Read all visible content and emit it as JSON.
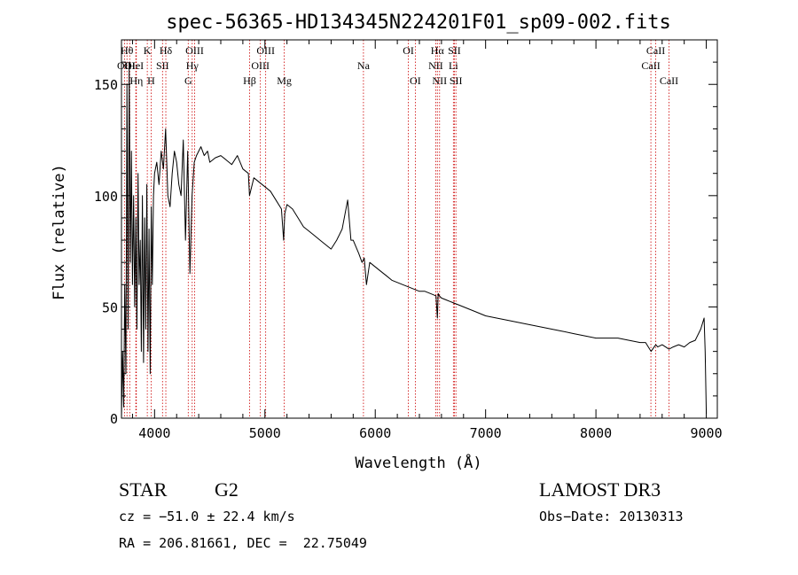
{
  "chart_data": {
    "type": "line",
    "title": "spec-56365-HD134345N224201F01_sp09-002.fits",
    "xlabel": "Wavelength (Å)",
    "ylabel": "Flux (relative)",
    "xlim": [
      3700,
      9100
    ],
    "ylim": [
      0,
      170
    ],
    "xticks": [
      4000,
      5000,
      6000,
      7000,
      8000,
      9000
    ],
    "yticks": [
      0,
      50,
      100,
      150
    ],
    "grid": false,
    "series": [
      {
        "name": "spectrum",
        "x": [
          3700,
          3710,
          3720,
          3730,
          3740,
          3750,
          3760,
          3770,
          3780,
          3790,
          3800,
          3810,
          3820,
          3830,
          3840,
          3850,
          3860,
          3870,
          3880,
          3890,
          3900,
          3910,
          3920,
          3930,
          3940,
          3950,
          3960,
          3970,
          3980,
          3990,
          4000,
          4020,
          4040,
          4060,
          4080,
          4100,
          4120,
          4140,
          4160,
          4180,
          4200,
          4220,
          4240,
          4260,
          4280,
          4300,
          4320,
          4340,
          4360,
          4380,
          4400,
          4420,
          4450,
          4480,
          4500,
          4550,
          4600,
          4650,
          4700,
          4750,
          4800,
          4850,
          4860,
          4900,
          4950,
          5000,
          5050,
          5100,
          5150,
          5170,
          5180,
          5200,
          5250,
          5300,
          5350,
          5400,
          5450,
          5500,
          5550,
          5600,
          5650,
          5700,
          5750,
          5780,
          5800,
          5850,
          5880,
          5900,
          5920,
          5950,
          6000,
          6050,
          6100,
          6150,
          6200,
          6250,
          6300,
          6350,
          6400,
          6450,
          6500,
          6550,
          6563,
          6570,
          6580,
          6600,
          6650,
          6700,
          6750,
          6800,
          6900,
          7000,
          7100,
          7200,
          7300,
          7400,
          7500,
          7600,
          7700,
          7800,
          7900,
          8000,
          8100,
          8200,
          8300,
          8400,
          8450,
          8500,
          8542,
          8560,
          8600,
          8662,
          8700,
          8750,
          8800,
          8850,
          8900,
          8950,
          8980,
          8990,
          9000
        ],
        "y": [
          0,
          30,
          5,
          60,
          20,
          150,
          40,
          160,
          70,
          120,
          60,
          100,
          50,
          90,
          40,
          110,
          60,
          80,
          30,
          100,
          25,
          90,
          40,
          105,
          30,
          85,
          20,
          95,
          60,
          100,
          110,
          115,
          105,
          120,
          112,
          130,
          100,
          95,
          110,
          120,
          115,
          105,
          100,
          125,
          80,
          120,
          65,
          100,
          115,
          118,
          120,
          122,
          118,
          120,
          115,
          117,
          118,
          116,
          114,
          118,
          112,
          110,
          100,
          108,
          106,
          104,
          102,
          98,
          94,
          80,
          92,
          96,
          94,
          90,
          86,
          84,
          82,
          80,
          78,
          76,
          80,
          85,
          98,
          80,
          80,
          74,
          70,
          72,
          60,
          70,
          68,
          66,
          64,
          62,
          61,
          60,
          59,
          58,
          57,
          57,
          56,
          55,
          45,
          56,
          55,
          54,
          53,
          52,
          51,
          50,
          48,
          46,
          45,
          44,
          43,
          42,
          41,
          40,
          39,
          38,
          37,
          36,
          36,
          36,
          35,
          34,
          34,
          30,
          33,
          32,
          33,
          31,
          32,
          33,
          32,
          34,
          35,
          40,
          45,
          30,
          2
        ]
      }
    ],
    "lines": [
      {
        "name": "OII",
        "wl": 3727,
        "row": 2
      },
      {
        "name": "Hθ",
        "wl": 3750,
        "row": 1
      },
      {
        "name": "OI",
        "wl": 3775,
        "row": 2
      },
      {
        "name": "Hη",
        "wl": 3835,
        "row": 3
      },
      {
        "name": "HeI",
        "wl": 3830,
        "row": 2
      },
      {
        "name": "K",
        "wl": 3934,
        "row": 1
      },
      {
        "name": "H",
        "wl": 3969,
        "row": 3
      },
      {
        "name": "SII",
        "wl": 4072,
        "row": 2
      },
      {
        "name": "Hδ",
        "wl": 4102,
        "row": 1
      },
      {
        "name": "OIII",
        "wl": 4363,
        "row": 1
      },
      {
        "name": "Hγ",
        "wl": 4341,
        "row": 2
      },
      {
        "name": "G",
        "wl": 4305,
        "row": 3
      },
      {
        "name": "Hβ",
        "wl": 4861,
        "row": 3
      },
      {
        "name": "OIII",
        "wl": 5007,
        "row": 1
      },
      {
        "name": "OIII",
        "wl": 4959,
        "row": 2
      },
      {
        "name": "Mg",
        "wl": 5175,
        "row": 3
      },
      {
        "name": "Na",
        "wl": 5893,
        "row": 2
      },
      {
        "name": "OI",
        "wl": 6300,
        "row": 1
      },
      {
        "name": "OI",
        "wl": 6363,
        "row": 3
      },
      {
        "name": "Hα",
        "wl": 6563,
        "row": 1
      },
      {
        "name": "NII",
        "wl": 6548,
        "row": 2
      },
      {
        "name": "NII",
        "wl": 6583,
        "row": 3
      },
      {
        "name": "SII",
        "wl": 6717,
        "row": 1
      },
      {
        "name": "Li",
        "wl": 6708,
        "row": 2
      },
      {
        "name": "SII",
        "wl": 6731,
        "row": 3
      },
      {
        "name": "CaII",
        "wl": 8542,
        "row": 1
      },
      {
        "name": "CaII",
        "wl": 8498,
        "row": 2
      },
      {
        "name": "CaII",
        "wl": 8662,
        "row": 3
      }
    ]
  },
  "info": {
    "class_label": "STAR",
    "subclass": "G2",
    "cz": "cz = −51.0 ± 22.4 km/s",
    "radec": "RA = 206.81661, DEC =  22.75049",
    "survey": "LAMOST DR3",
    "obsdate": "Obs−Date: 20130313"
  },
  "colors": {
    "axis": "#000000",
    "line": "#000000",
    "marker": "#cc0000"
  }
}
